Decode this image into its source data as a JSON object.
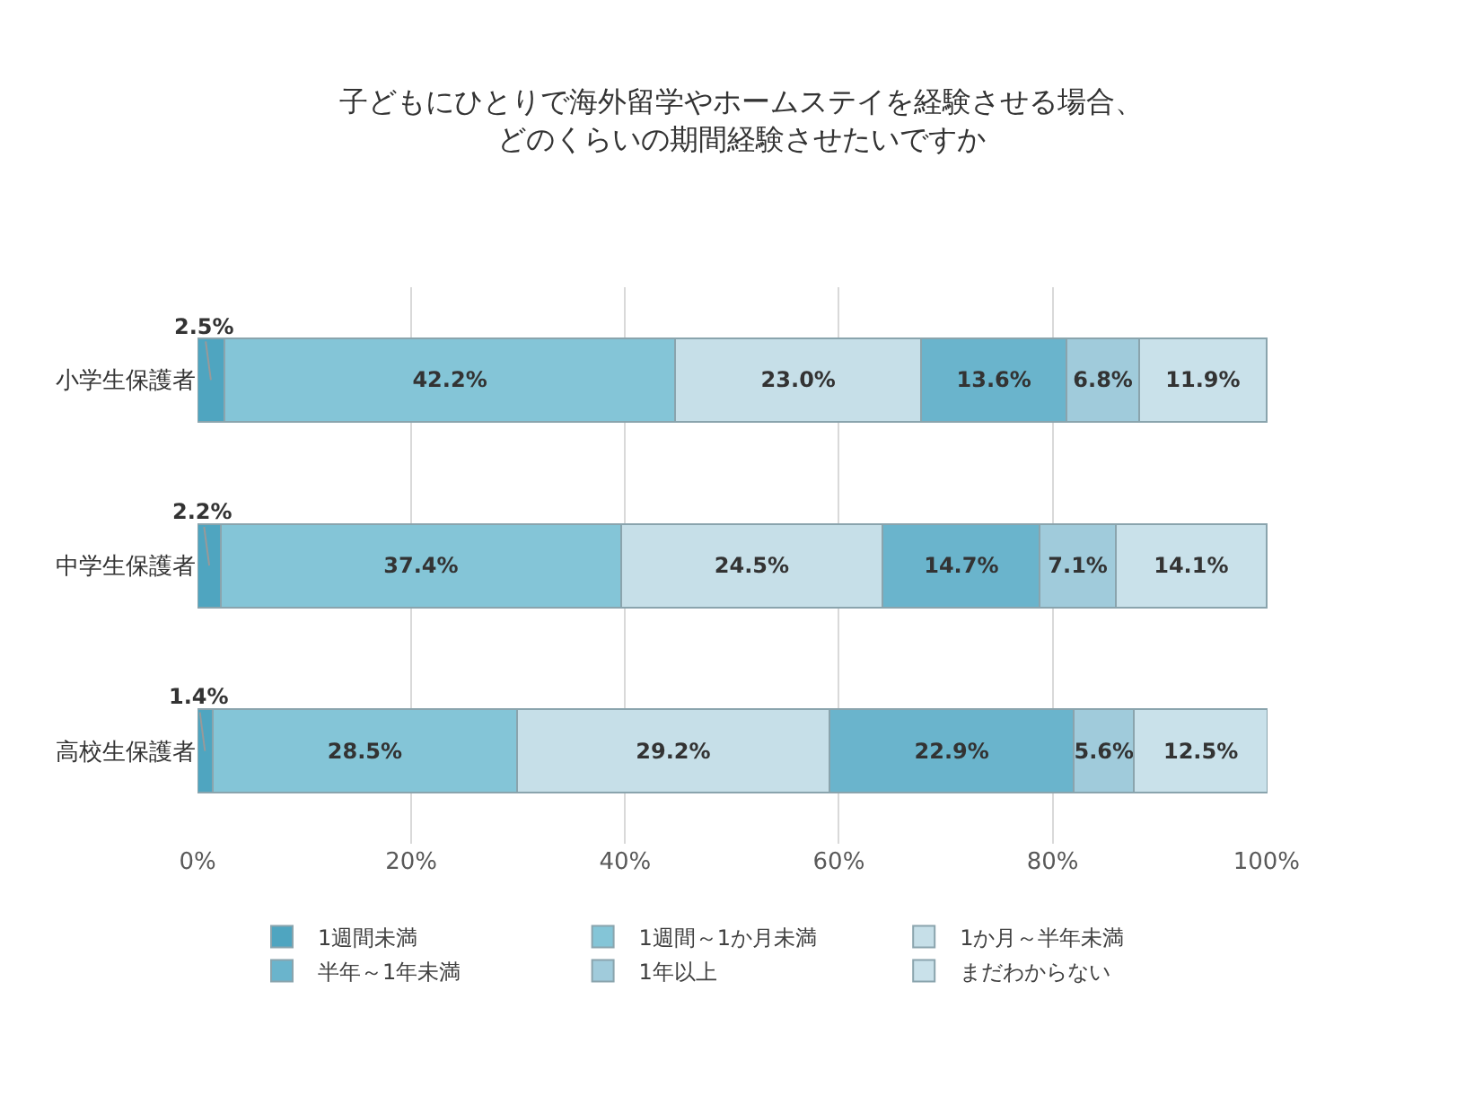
{
  "chart_data": {
    "type": "bar",
    "orientation": "horizontal",
    "stacked": true,
    "title": "子どもにひとりで海外留学やホームステイを経験させる場合、どのくらいの期間経験させたいですか",
    "categories": [
      "小学生保護者",
      "中学生保護者",
      "高校生保護者"
    ],
    "series": [
      {
        "name": "1週間未満",
        "color": "#4fa5c0",
        "values": [
          2.5,
          2.2,
          1.4
        ],
        "value_labels": [
          "2.5%",
          "2.2%",
          "1.4%"
        ]
      },
      {
        "name": "1週間～1か月未満",
        "color": "#84c5d7",
        "values": [
          42.2,
          37.4,
          28.5
        ],
        "value_labels": [
          "42.2%",
          "37.4%",
          "28.5%"
        ]
      },
      {
        "name": "1か月～半年未満",
        "color": "#c6dfe8",
        "values": [
          23.0,
          24.5,
          29.2
        ],
        "value_labels": [
          "23.0%",
          "24.5%",
          "29.2%"
        ]
      },
      {
        "name": "半年～1年未満",
        "color": "#6ab4cc",
        "values": [
          13.6,
          14.7,
          22.9
        ],
        "value_labels": [
          "13.6%",
          "14.7%",
          "22.9%"
        ]
      },
      {
        "name": "1年以上",
        "color": "#a0cbdb",
        "values": [
          6.8,
          7.1,
          5.6
        ],
        "value_labels": [
          "6.8%",
          "7.1%",
          "5.6%"
        ]
      },
      {
        "name": "まだわからない",
        "color": "#c9e1ea",
        "values": [
          11.9,
          14.1,
          12.5
        ],
        "value_labels": [
          "11.9%",
          "14.1%",
          "12.5%"
        ]
      }
    ],
    "xlim": [
      0,
      100.1
    ],
    "xticks": [
      {
        "value": 0,
        "label": "0%"
      },
      {
        "value": 20,
        "label": "20%"
      },
      {
        "value": 40,
        "label": "40%"
      },
      {
        "value": 60,
        "label": "60%"
      },
      {
        "value": 80,
        "label": "80%"
      },
      {
        "value": 100,
        "label": "100%"
      }
    ],
    "grid": "x",
    "legend": "bottom"
  }
}
